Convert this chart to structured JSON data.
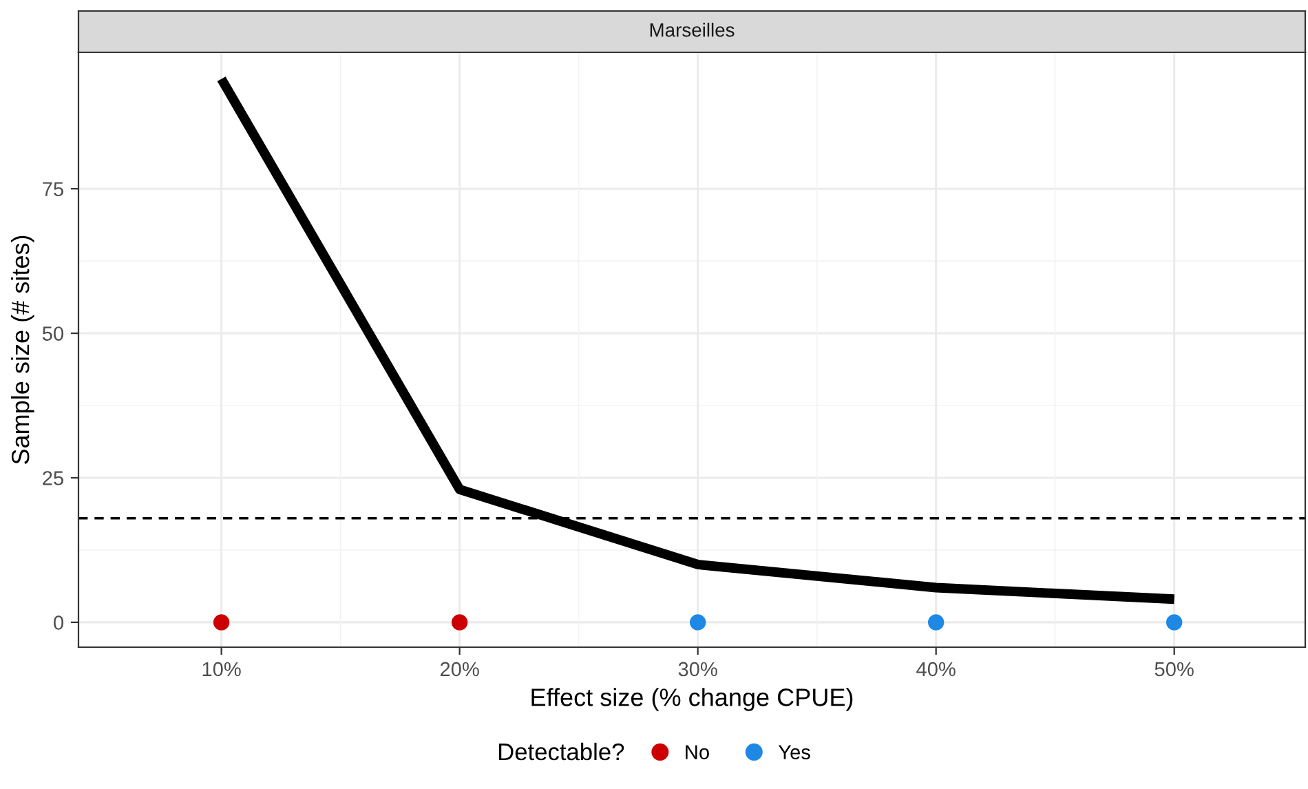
{
  "chart_data": {
    "type": "scatter",
    "title": "Marseilles",
    "xlabel": "Effect size (% change CPUE)",
    "ylabel": "Sample size (# sites)",
    "legend_title": "Detectable?",
    "series": [
      {
        "type": "line",
        "color": "#000000",
        "x": [
          10,
          20,
          30,
          40,
          50
        ],
        "values": [
          94,
          23,
          10,
          6,
          4
        ]
      },
      {
        "name": "No",
        "marker": "circle",
        "color": "#cc0000",
        "x": [
          10,
          20
        ],
        "values": [
          0,
          0
        ]
      },
      {
        "name": "Yes",
        "marker": "circle",
        "color": "#1e88e5",
        "x": [
          30,
          40,
          50
        ],
        "values": [
          0,
          0,
          0
        ]
      }
    ],
    "ref_lines": [
      {
        "axis": "y",
        "value": 18,
        "line_style": "dashed",
        "color": "#000000"
      }
    ],
    "xlim": [
      4,
      55.5
    ],
    "ylim": [
      -4.3,
      98.6
    ],
    "xticks": [
      {
        "value": 10,
        "label": "10%"
      },
      {
        "value": 20,
        "label": "20%"
      },
      {
        "value": 30,
        "label": "30%"
      },
      {
        "value": 40,
        "label": "40%"
      },
      {
        "value": 50,
        "label": "50%"
      }
    ],
    "yticks": [
      0,
      25,
      50,
      75
    ],
    "grid": true,
    "legend": "bottom"
  }
}
